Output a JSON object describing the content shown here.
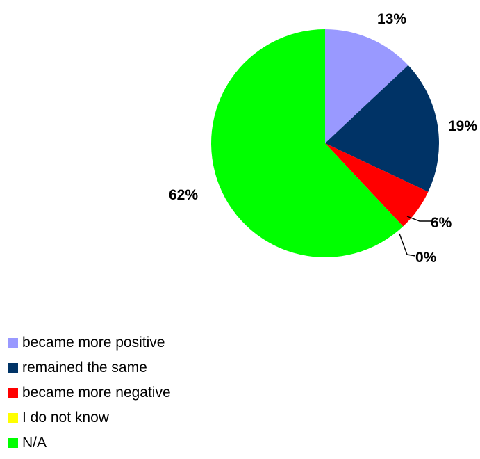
{
  "chart_data": {
    "type": "pie",
    "slices": [
      {
        "label": "became more positive",
        "value": 13,
        "value_label": "13%",
        "color": "#9999ff"
      },
      {
        "label": "remained the same",
        "value": 19,
        "value_label": "19%",
        "color": "#003366"
      },
      {
        "label": "became more negative",
        "value": 6,
        "value_label": "6%",
        "color": "#ff0000"
      },
      {
        "label": "I do not know",
        "value": 0,
        "value_label": "0%",
        "color": "#ffff00"
      },
      {
        "label": "N/A",
        "value": 62,
        "value_label": "62%",
        "color": "#00ff00"
      }
    ],
    "legend_placement": "bottom-left"
  }
}
